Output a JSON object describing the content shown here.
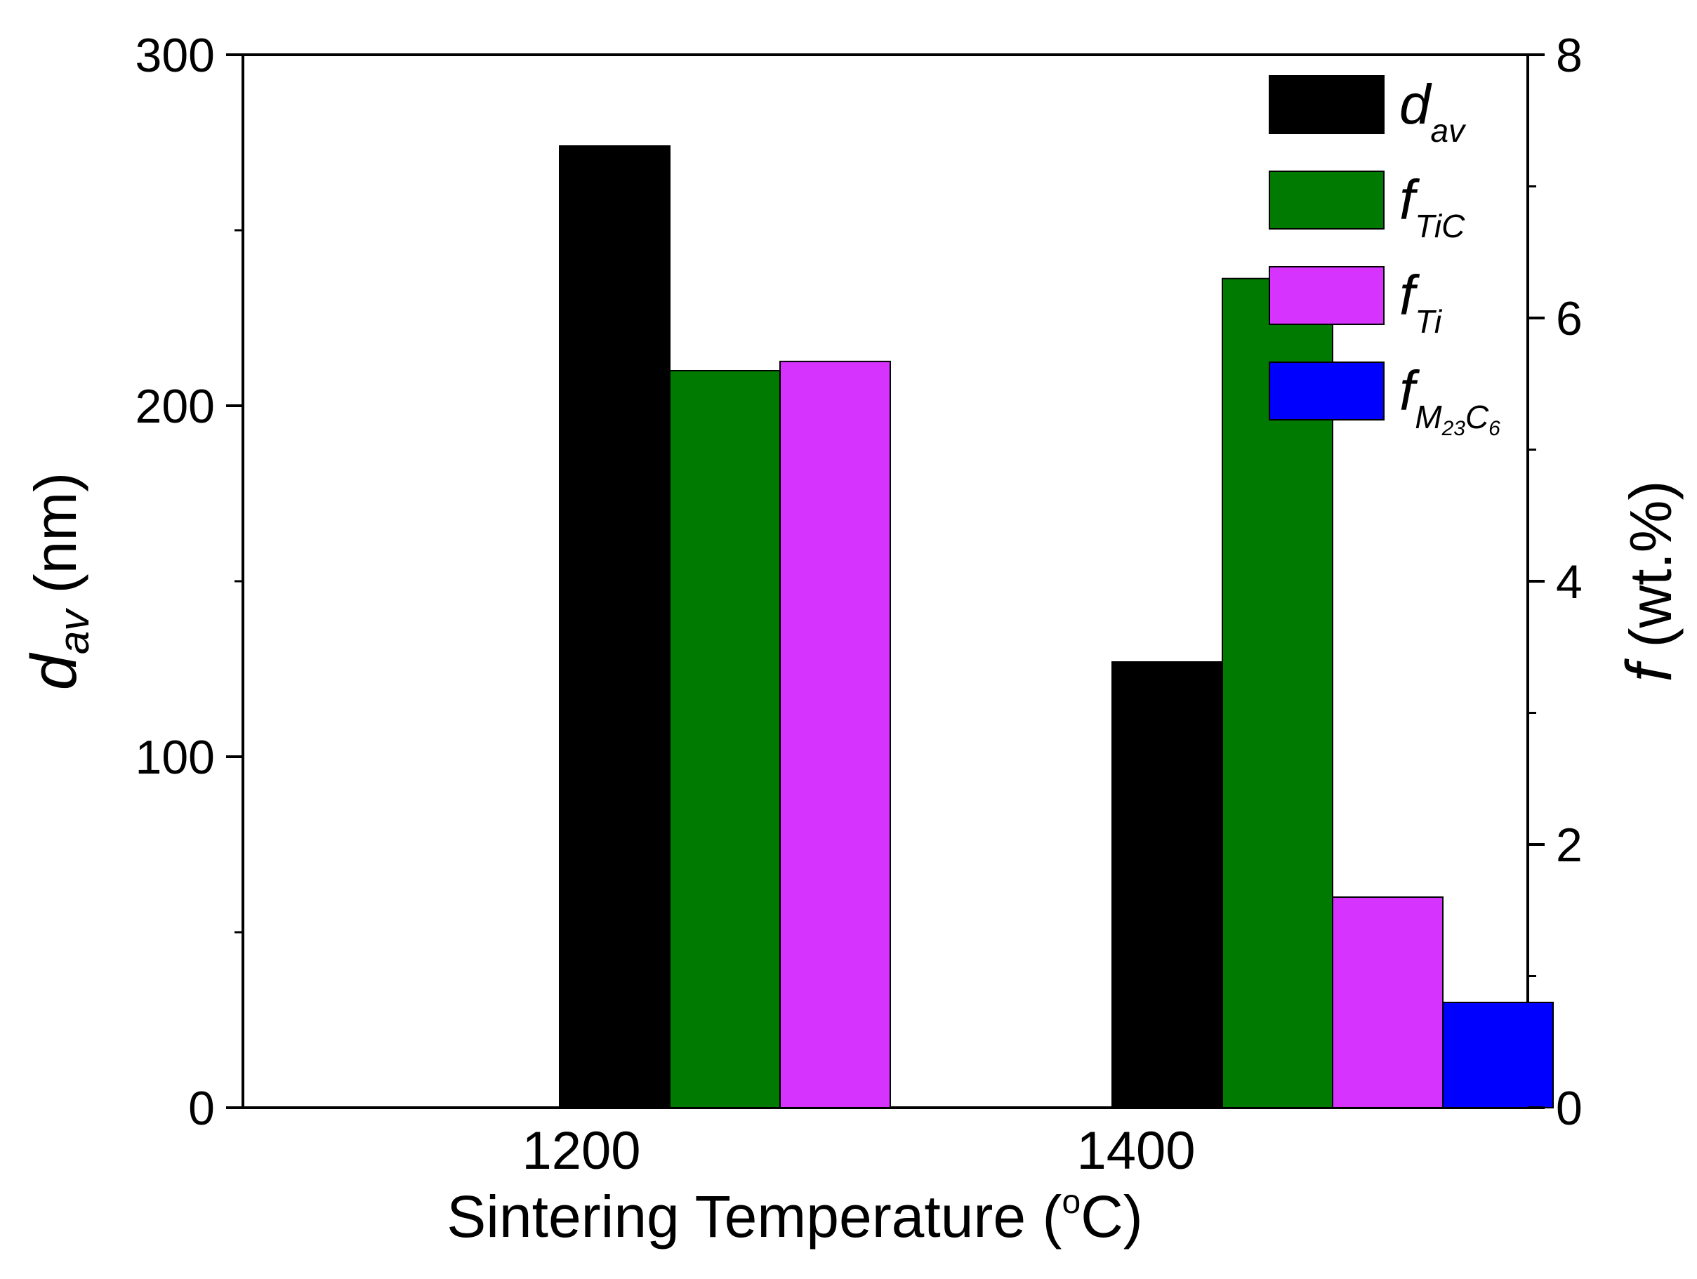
{
  "chart_data": {
    "type": "bar",
    "title": "",
    "categories": [
      "1200",
      "1400"
    ],
    "xlabel": "Sintering Temperature (°C)",
    "xlabel_parts": {
      "main": "Sintering Temperature (",
      "degree": "o",
      "unit": "C)"
    },
    "ylabel_left": {
      "symbol": "d",
      "subscript": "av",
      "unit": "(nm)"
    },
    "ylabel_right": {
      "symbol": "f",
      "unit": "(wt.%)"
    },
    "ylim_left": [
      0,
      300
    ],
    "ylim_right": [
      0,
      8
    ],
    "yticks_left": [
      0,
      100,
      200,
      300
    ],
    "yticks_right": [
      0,
      2,
      4,
      6,
      8
    ],
    "series": [
      {
        "name": "d_av",
        "legend_symbol": "d",
        "legend_sub": "av",
        "axis": "left",
        "color": "#000000",
        "values": [
          274,
          127
        ]
      },
      {
        "name": "f_TiC",
        "legend_symbol": "f",
        "legend_sub": "TiC",
        "axis": "right",
        "color": "#007a00",
        "values": [
          5.6,
          6.3
        ]
      },
      {
        "name": "f_Ti",
        "legend_symbol": "f",
        "legend_sub": "Ti",
        "axis": "right",
        "color": "#d633ff",
        "values": [
          5.67,
          1.6
        ]
      },
      {
        "name": "f_M23C6",
        "legend_symbol": "f",
        "legend_sub": "M",
        "legend_sub_sub1": "23",
        "legend_sub_mid": "C",
        "legend_sub_sub2": "6",
        "axis": "right",
        "color": "#0000ff",
        "values": [
          null,
          0.8
        ]
      }
    ],
    "legend_position": "top-right",
    "grid": false
  }
}
